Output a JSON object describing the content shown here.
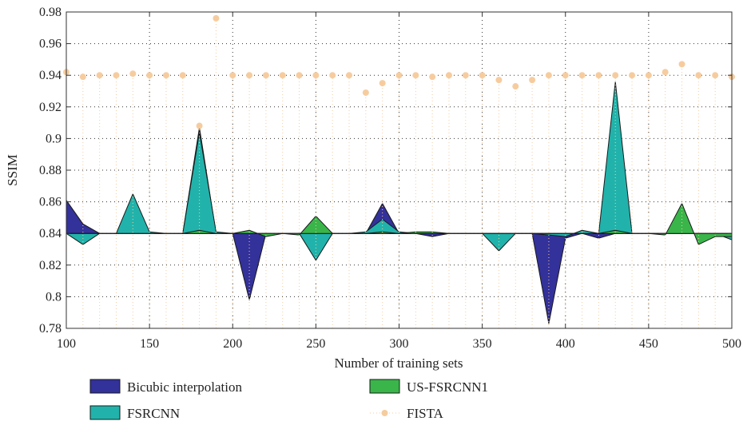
{
  "chart_data": {
    "type": "area",
    "xlabel": "Number of training sets",
    "ylabel": "SSIM",
    "xlim": [
      100,
      500
    ],
    "ylim": [
      0.78,
      0.98
    ],
    "baseline": 0.84,
    "grid": true,
    "legend_position": "bottom",
    "x_ticks": [
      "100",
      "150",
      "200",
      "250",
      "300",
      "350",
      "400",
      "450",
      "500"
    ],
    "y_ticks": [
      "0.78",
      "0.8",
      "0.82",
      "0.84",
      "0.86",
      "0.88",
      "0.9",
      "0.92",
      "0.94",
      "0.96",
      "0.98"
    ],
    "x": [
      100,
      110,
      120,
      130,
      140,
      150,
      160,
      170,
      180,
      190,
      200,
      210,
      220,
      230,
      240,
      250,
      260,
      270,
      280,
      290,
      300,
      310,
      320,
      330,
      340,
      350,
      360,
      370,
      380,
      390,
      400,
      410,
      420,
      430,
      440,
      450,
      460,
      470,
      480,
      490,
      500
    ],
    "series": [
      {
        "name": "Bicubic interpolation",
        "color": "#33319a",
        "kind": "area",
        "values": [
          0.861,
          0.846,
          0.84,
          0.84,
          0.84,
          0.84,
          0.84,
          0.84,
          0.907,
          0.84,
          0.84,
          0.798,
          0.84,
          0.84,
          0.84,
          0.84,
          0.84,
          0.84,
          0.84,
          0.859,
          0.84,
          0.84,
          0.838,
          0.84,
          0.84,
          0.84,
          0.84,
          0.84,
          0.84,
          0.783,
          0.837,
          0.84,
          0.837,
          0.84,
          0.84,
          0.84,
          0.84,
          0.84,
          0.84,
          0.84,
          0.84
        ]
      },
      {
        "name": "FSRCNN",
        "color": "#21b3ab",
        "kind": "area",
        "values": [
          0.84,
          0.833,
          0.84,
          0.84,
          0.865,
          0.841,
          0.84,
          0.84,
          0.904,
          0.841,
          0.84,
          0.84,
          0.84,
          0.84,
          0.84,
          0.823,
          0.84,
          0.84,
          0.841,
          0.849,
          0.841,
          0.84,
          0.84,
          0.84,
          0.84,
          0.84,
          0.829,
          0.84,
          0.84,
          0.839,
          0.838,
          0.842,
          0.84,
          0.936,
          0.84,
          0.84,
          0.84,
          0.84,
          0.84,
          0.84,
          0.836
        ]
      },
      {
        "name": "US-FSRCNN1",
        "color": "#3ab54a",
        "kind": "area",
        "values": [
          0.84,
          0.84,
          0.84,
          0.84,
          0.84,
          0.84,
          0.84,
          0.84,
          0.842,
          0.84,
          0.84,
          0.842,
          0.838,
          0.84,
          0.839,
          0.851,
          0.84,
          0.84,
          0.84,
          0.841,
          0.84,
          0.841,
          0.841,
          0.84,
          0.84,
          0.84,
          0.84,
          0.84,
          0.84,
          0.84,
          0.84,
          0.84,
          0.84,
          0.842,
          0.84,
          0.84,
          0.839,
          0.859,
          0.833,
          0.838,
          0.838
        ]
      },
      {
        "name": "FISTA",
        "color": "#f6cc9f",
        "kind": "stem",
        "values": [
          0.942,
          0.939,
          0.94,
          0.94,
          0.941,
          0.94,
          0.94,
          0.94,
          0.908,
          0.976,
          0.94,
          0.94,
          0.94,
          0.94,
          0.94,
          0.94,
          0.94,
          0.94,
          0.929,
          0.935,
          0.94,
          0.94,
          0.939,
          0.94,
          0.94,
          0.94,
          0.937,
          0.933,
          0.937,
          0.94,
          0.94,
          0.94,
          0.94,
          0.94,
          0.94,
          0.94,
          0.942,
          0.947,
          0.94,
          0.94,
          0.939
        ]
      }
    ]
  }
}
